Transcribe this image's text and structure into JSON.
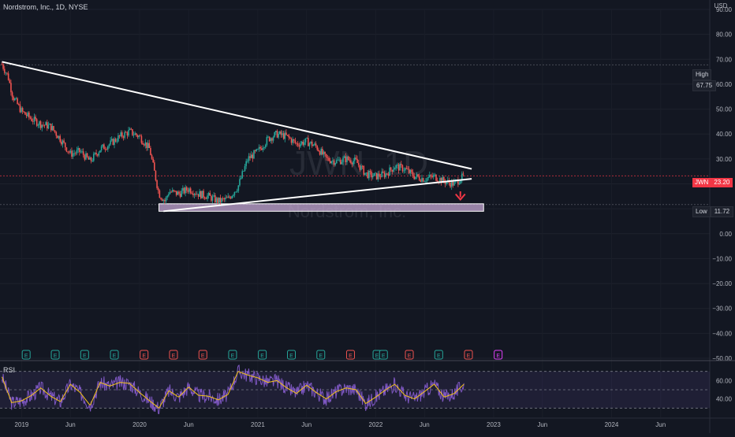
{
  "header": {
    "title": "Nordstrom, Inc., 1D, NYSE"
  },
  "watermark": {
    "symbol": "JWN, 1D",
    "name": "Nordstrom, Inc."
  },
  "axis": {
    "currency": "USD",
    "price_ticks": [
      "90.00",
      "80.00",
      "70.00",
      "60.00",
      "50.00",
      "40.00",
      "30.00",
      "20.00",
      "10.00",
      "0.00",
      "−10.00",
      "−20.00",
      "−30.00",
      "−40.00",
      "−50.00"
    ],
    "time_ticks": [
      "2019",
      "Jun",
      "2020",
      "Jun",
      "2021",
      "Jun",
      "2022",
      "Jun",
      "2023",
      "Jun",
      "2024",
      "Jun"
    ],
    "rsi_ticks": [
      "60.00",
      "40.00"
    ]
  },
  "tags": {
    "high": {
      "label": "High",
      "value": "67.75"
    },
    "current": {
      "label": "JWN",
      "value": "23.20"
    },
    "low": {
      "label": "Low",
      "value": "11.72"
    }
  },
  "rsi": {
    "label": "RSI"
  },
  "colors": {
    "background": "#131722",
    "up": "#26a69a",
    "down": "#ef5350",
    "rsi_line": "#7e57c2",
    "rsi_ma": "#f5c518",
    "trendline": "#ffffff",
    "support_box": "#c5a8d4",
    "arrow": "#f23645"
  },
  "chart_data": {
    "type": "candlestick",
    "ylim": [
      -50,
      90
    ],
    "xlim": [
      "2018-10-26",
      "2024-10-31"
    ],
    "series": [
      {
        "name": "JWN",
        "points": [
          [
            "2018-11-01",
            68
          ],
          [
            "2018-11-20",
            63
          ],
          [
            "2018-12-05",
            55
          ],
          [
            "2019-01-01",
            49
          ],
          [
            "2019-02-01",
            46
          ],
          [
            "2019-03-01",
            44
          ],
          [
            "2019-04-01",
            43
          ],
          [
            "2019-05-01",
            38
          ],
          [
            "2019-06-01",
            32
          ],
          [
            "2019-07-01",
            33
          ],
          [
            "2019-08-01",
            29
          ],
          [
            "2019-09-01",
            34
          ],
          [
            "2019-10-01",
            36
          ],
          [
            "2019-11-01",
            39
          ],
          [
            "2019-12-01",
            41
          ],
          [
            "2020-01-01",
            39
          ],
          [
            "2020-02-01",
            34
          ],
          [
            "2020-03-01",
            16
          ],
          [
            "2020-03-20",
            13
          ],
          [
            "2020-04-01",
            17
          ],
          [
            "2020-05-01",
            16
          ],
          [
            "2020-06-01",
            18
          ],
          [
            "2020-07-01",
            16
          ],
          [
            "2020-08-01",
            15
          ],
          [
            "2020-09-01",
            13
          ],
          [
            "2020-10-01",
            14
          ],
          [
            "2020-11-01",
            19
          ],
          [
            "2020-12-01",
            30
          ],
          [
            "2021-01-01",
            33
          ],
          [
            "2021-02-01",
            38
          ],
          [
            "2021-03-01",
            40
          ],
          [
            "2021-04-01",
            39
          ],
          [
            "2021-05-01",
            36
          ],
          [
            "2021-06-01",
            37
          ],
          [
            "2021-07-01",
            35
          ],
          [
            "2021-08-01",
            30
          ],
          [
            "2021-09-01",
            29
          ],
          [
            "2021-10-01",
            30
          ],
          [
            "2021-11-01",
            29
          ],
          [
            "2021-12-01",
            24
          ],
          [
            "2022-01-01",
            23
          ],
          [
            "2022-02-01",
            24
          ],
          [
            "2022-03-01",
            27
          ],
          [
            "2022-04-01",
            26
          ],
          [
            "2022-05-01",
            23
          ],
          [
            "2022-06-01",
            22
          ],
          [
            "2022-07-01",
            23
          ],
          [
            "2022-08-01",
            21
          ],
          [
            "2022-09-01",
            20
          ],
          [
            "2022-10-01",
            23.2
          ]
        ]
      }
    ],
    "high": 67.75,
    "low": 11.72,
    "last": 23.2,
    "annotations": {
      "upper_trendline": [
        [
          "2018-11-01",
          69
        ],
        [
          "2022-10-25",
          26
        ]
      ],
      "lower_trendline": [
        [
          "2020-03-15",
          9
        ],
        [
          "2022-10-25",
          22
        ]
      ],
      "support_zone": {
        "x": [
          "2020-03-01",
          "2022-12-01"
        ],
        "y": [
          9,
          12
        ]
      },
      "arrow": {
        "date": "2022-09-20",
        "from": 17,
        "to": 14,
        "direction": "down"
      },
      "event_markers": [
        [
          "2019-01-15",
          "E",
          "earnings"
        ],
        [
          "2019-04-15",
          "E",
          "earnings"
        ],
        [
          "2019-07-15",
          "E",
          "earnings"
        ],
        [
          "2019-10-15",
          "E",
          "earnings"
        ],
        [
          "2020-01-15",
          "E",
          "earnings_miss"
        ],
        [
          "2020-04-15",
          "E",
          "earnings_miss"
        ],
        [
          "2020-07-15",
          "E",
          "earnings_miss"
        ],
        [
          "2020-10-15",
          "E",
          "earnings"
        ],
        [
          "2021-01-15",
          "E",
          "earnings"
        ],
        [
          "2021-04-15",
          "E",
          "earnings"
        ],
        [
          "2021-07-15",
          "E",
          "earnings"
        ],
        [
          "2021-10-15",
          "E",
          "earnings_miss"
        ],
        [
          "2022-01-05",
          "E",
          "earnings"
        ],
        [
          "2022-01-25",
          "E",
          "earnings"
        ],
        [
          "2022-04-15",
          "E",
          "earnings_miss"
        ],
        [
          "2022-07-15",
          "E",
          "earnings"
        ],
        [
          "2022-10-15",
          "E",
          "earnings_miss"
        ],
        [
          "2023-01-15",
          "E",
          "upcoming"
        ]
      ]
    },
    "rsi": {
      "ylim": [
        20,
        80
      ],
      "levels": [
        70,
        50,
        30
      ],
      "points": [
        [
          "2018-11-01",
          64
        ],
        [
          "2018-12-01",
          36
        ],
        [
          "2019-01-01",
          38
        ],
        [
          "2019-02-01",
          44
        ],
        [
          "2019-03-01",
          52
        ],
        [
          "2019-04-01",
          43
        ],
        [
          "2019-05-01",
          37
        ],
        [
          "2019-06-01",
          56
        ],
        [
          "2019-07-01",
          47
        ],
        [
          "2019-08-01",
          33
        ],
        [
          "2019-09-01",
          58
        ],
        [
          "2019-10-01",
          54
        ],
        [
          "2019-11-01",
          58
        ],
        [
          "2019-12-01",
          57
        ],
        [
          "2020-01-01",
          47
        ],
        [
          "2020-02-01",
          38
        ],
        [
          "2020-03-01",
          30
        ],
        [
          "2020-04-01",
          49
        ],
        [
          "2020-05-01",
          42
        ],
        [
          "2020-06-01",
          53
        ],
        [
          "2020-07-01",
          44
        ],
        [
          "2020-08-01",
          43
        ],
        [
          "2020-09-01",
          39
        ],
        [
          "2020-10-01",
          45
        ],
        [
          "2020-11-01",
          70
        ],
        [
          "2020-12-01",
          66
        ],
        [
          "2021-01-01",
          63
        ],
        [
          "2021-02-01",
          58
        ],
        [
          "2021-03-01",
          60
        ],
        [
          "2021-04-01",
          52
        ],
        [
          "2021-05-01",
          46
        ],
        [
          "2021-06-01",
          55
        ],
        [
          "2021-07-01",
          47
        ],
        [
          "2021-08-01",
          40
        ],
        [
          "2021-09-01",
          48
        ],
        [
          "2021-10-01",
          52
        ],
        [
          "2021-11-01",
          50
        ],
        [
          "2021-12-01",
          35
        ],
        [
          "2022-01-01",
          42
        ],
        [
          "2022-02-01",
          50
        ],
        [
          "2022-03-01",
          56
        ],
        [
          "2022-04-01",
          44
        ],
        [
          "2022-05-01",
          40
        ],
        [
          "2022-06-01",
          48
        ],
        [
          "2022-07-01",
          56
        ],
        [
          "2022-08-01",
          42
        ],
        [
          "2022-09-01",
          46
        ],
        [
          "2022-10-01",
          56
        ]
      ]
    }
  }
}
